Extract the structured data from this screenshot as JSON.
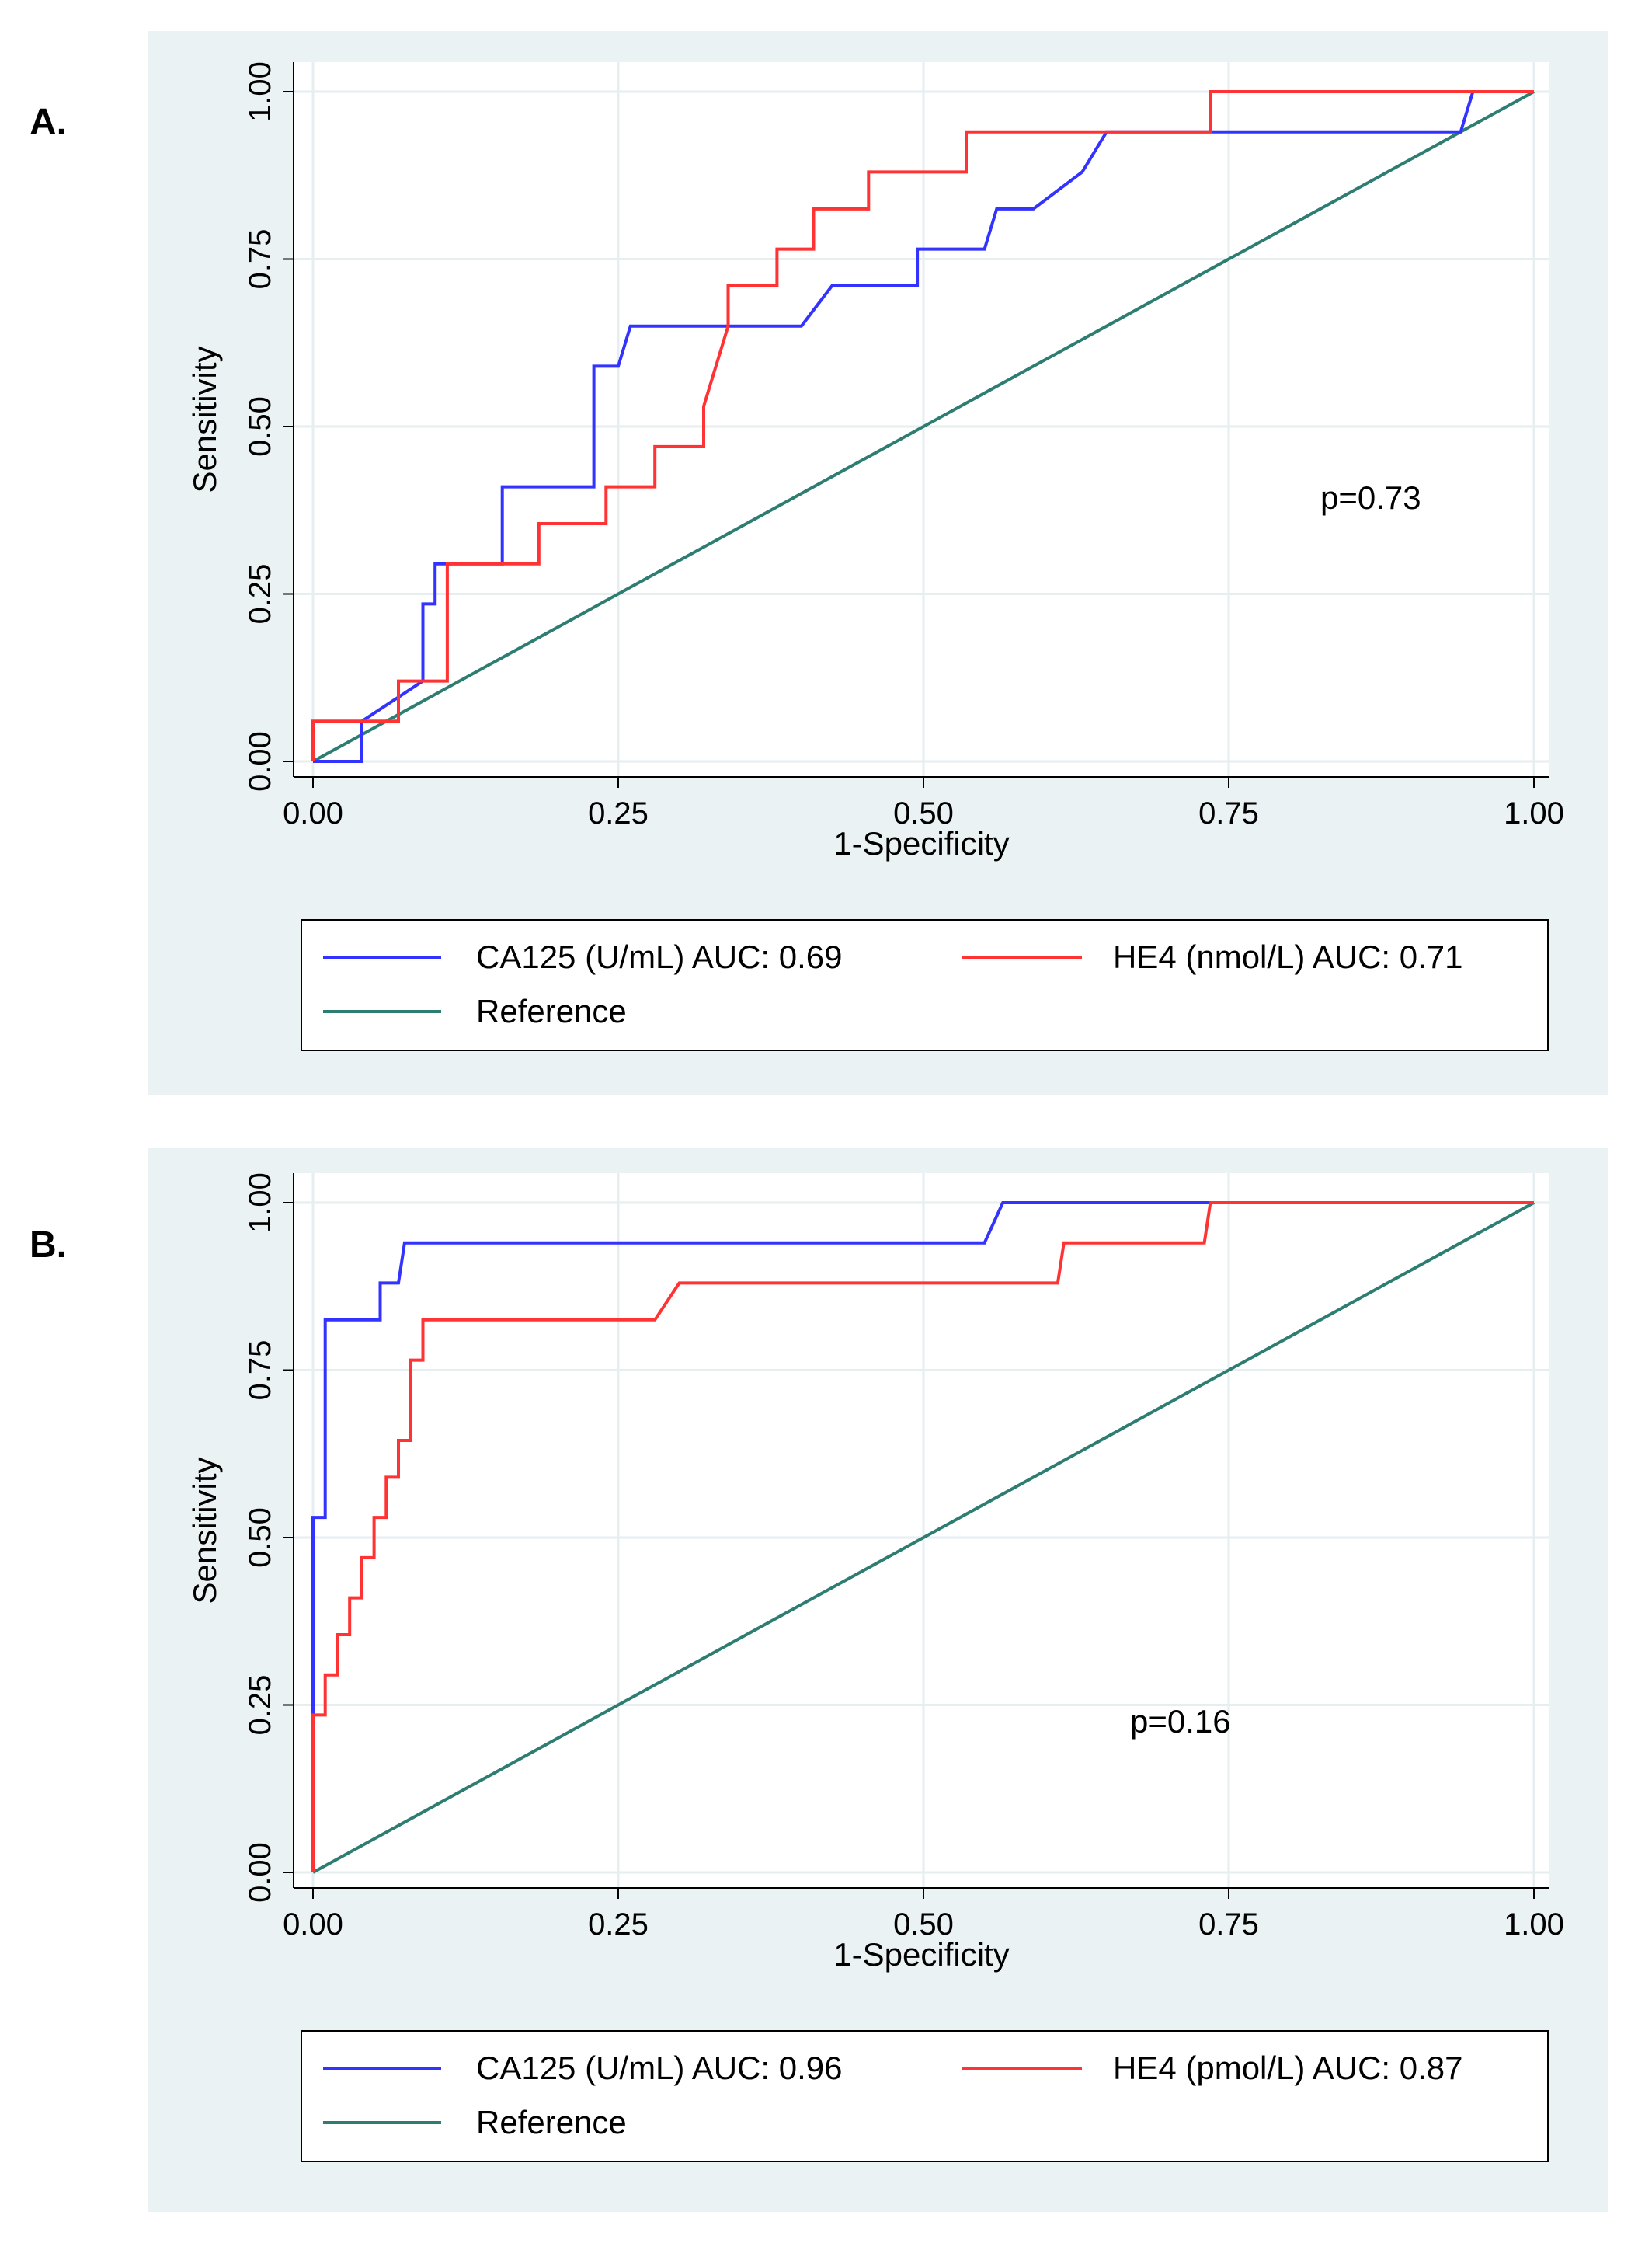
{
  "colors": {
    "panel_bg": "#eaf2f3",
    "plot_bg": "#ffffff",
    "grid": "#e6eef0",
    "ca125": "#3333ff",
    "he4": "#ff3333",
    "reference": "#2e7d72",
    "axis": "#000000"
  },
  "chart_data": [
    {
      "panel": "A.",
      "type": "line",
      "xlabel": "1-Specificity",
      "ylabel": "Sensitivity",
      "xlim": [
        0,
        1
      ],
      "ylim": [
        0,
        1
      ],
      "xticks": [
        "0.00",
        "0.25",
        "0.50",
        "0.75",
        "1.00"
      ],
      "yticks": [
        "0.00",
        "0.25",
        "0.50",
        "0.75",
        "1.00"
      ],
      "annotation": "p=0.73",
      "series": [
        {
          "name": "CA125 (U/mL) AUC: 0.69",
          "key": "ca125",
          "x": [
            0,
            0.04,
            0.04,
            0.09,
            0.09,
            0.1,
            0.1,
            0.155,
            0.155,
            0.23,
            0.23,
            0.25,
            0.26,
            0.4,
            0.425,
            0.495,
            0.495,
            0.55,
            0.56,
            0.59,
            0.63,
            0.65,
            0.94,
            0.95,
            1.0
          ],
          "y": [
            0,
            0,
            0.06,
            0.12,
            0.235,
            0.235,
            0.295,
            0.295,
            0.41,
            0.41,
            0.59,
            0.59,
            0.65,
            0.65,
            0.71,
            0.71,
            0.765,
            0.765,
            0.825,
            0.825,
            0.88,
            0.94,
            0.94,
            1.0,
            1.0
          ]
        },
        {
          "name": "HE4 (nmol/L) AUC: 0.71",
          "key": "he4",
          "x": [
            0,
            0,
            0.07,
            0.07,
            0.11,
            0.11,
            0.185,
            0.185,
            0.24,
            0.24,
            0.28,
            0.28,
            0.32,
            0.32,
            0.34,
            0.34,
            0.38,
            0.38,
            0.41,
            0.41,
            0.455,
            0.455,
            0.535,
            0.535,
            0.735,
            0.735,
            1.0
          ],
          "y": [
            0,
            0.06,
            0.06,
            0.12,
            0.12,
            0.295,
            0.295,
            0.355,
            0.355,
            0.41,
            0.41,
            0.47,
            0.47,
            0.53,
            0.65,
            0.71,
            0.71,
            0.765,
            0.765,
            0.825,
            0.825,
            0.88,
            0.88,
            0.94,
            0.94,
            1.0,
            1.0
          ]
        },
        {
          "name": "Reference",
          "key": "reference",
          "x": [
            0,
            1
          ],
          "y": [
            0,
            1
          ]
        }
      ]
    },
    {
      "panel": "B.",
      "type": "line",
      "xlabel": "1-Specificity",
      "ylabel": "Sensitivity",
      "xlim": [
        0,
        1
      ],
      "ylim": [
        0,
        1
      ],
      "xticks": [
        "0.00",
        "0.25",
        "0.50",
        "0.75",
        "1.00"
      ],
      "yticks": [
        "0.00",
        "0.25",
        "0.50",
        "0.75",
        "1.00"
      ],
      "annotation": "p=0.16",
      "series": [
        {
          "name": "CA125 (U/mL) AUC: 0.96",
          "key": "ca125",
          "x": [
            0,
            0,
            0.01,
            0.01,
            0.055,
            0.055,
            0.07,
            0.075,
            0.55,
            0.565,
            0.735,
            0.735,
            1.0
          ],
          "y": [
            0.235,
            0.53,
            0.53,
            0.825,
            0.825,
            0.88,
            0.88,
            0.94,
            0.94,
            1.0,
            1.0,
            1.0,
            1.0
          ]
        },
        {
          "name": "HE4 (pmol/L) AUC: 0.87",
          "key": "he4",
          "x": [
            0,
            0,
            0.01,
            0.01,
            0.02,
            0.02,
            0.03,
            0.03,
            0.04,
            0.04,
            0.05,
            0.05,
            0.06,
            0.06,
            0.07,
            0.07,
            0.08,
            0.08,
            0.09,
            0.09,
            0.28,
            0.3,
            0.61,
            0.615,
            0.73,
            0.735,
            1.0
          ],
          "y": [
            0,
            0.235,
            0.235,
            0.295,
            0.295,
            0.355,
            0.355,
            0.41,
            0.41,
            0.47,
            0.47,
            0.53,
            0.53,
            0.59,
            0.59,
            0.645,
            0.645,
            0.765,
            0.765,
            0.825,
            0.825,
            0.88,
            0.88,
            0.94,
            0.94,
            1.0,
            1.0
          ]
        },
        {
          "name": "Reference",
          "key": "reference",
          "x": [
            0,
            1
          ],
          "y": [
            0,
            1
          ]
        }
      ]
    }
  ]
}
